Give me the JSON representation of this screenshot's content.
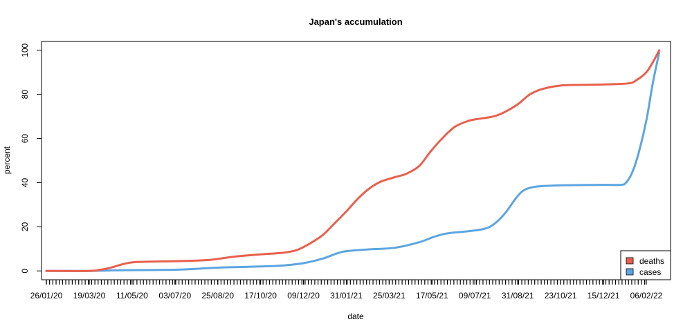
{
  "chart_data": {
    "type": "line",
    "title": "Japan's accumulation",
    "xlabel": "date",
    "ylabel": "percent",
    "x_ticks": [
      "26/01/20",
      "19/03/20",
      "11/05/20",
      "03/07/20",
      "25/08/20",
      "17/10/20",
      "09/12/20",
      "31/01/21",
      "25/03/21",
      "17/05/21",
      "09/07/21",
      "31/08/21",
      "23/10/21",
      "15/12/21",
      "06/02/22"
    ],
    "y_ticks": [
      0,
      20,
      40,
      60,
      80,
      100
    ],
    "ylim": [
      -4,
      104
    ],
    "xlim": [
      "2020-01-20",
      "2022-03-08"
    ],
    "grid": false,
    "legend": {
      "position": "bottom-right",
      "entries": [
        "deaths",
        "cases"
      ]
    },
    "series": [
      {
        "name": "deaths",
        "color": "#E8604C",
        "points": [
          [
            "2020-01-26",
            0
          ],
          [
            "2020-03-19",
            0
          ],
          [
            "2020-04-01",
            0.5
          ],
          [
            "2020-04-15",
            1.5
          ],
          [
            "2020-05-01",
            3.2
          ],
          [
            "2020-05-15",
            4.0
          ],
          [
            "2020-06-15",
            4.3
          ],
          [
            "2020-07-15",
            4.5
          ],
          [
            "2020-08-15",
            5.0
          ],
          [
            "2020-09-15",
            6.5
          ],
          [
            "2020-10-17",
            7.5
          ],
          [
            "2020-11-15",
            8.3
          ],
          [
            "2020-12-01",
            9.5
          ],
          [
            "2020-12-15",
            12.0
          ],
          [
            "2021-01-01",
            16.0
          ],
          [
            "2021-01-15",
            21.0
          ],
          [
            "2021-01-31",
            27.0
          ],
          [
            "2021-02-15",
            33.0
          ],
          [
            "2021-03-01",
            37.5
          ],
          [
            "2021-03-15",
            40.5
          ],
          [
            "2021-04-01",
            42.5
          ],
          [
            "2021-04-15",
            44.0
          ],
          [
            "2021-05-01",
            47.5
          ],
          [
            "2021-05-15",
            54.0
          ],
          [
            "2021-06-01",
            61.0
          ],
          [
            "2021-06-15",
            65.5
          ],
          [
            "2021-07-01",
            68.0
          ],
          [
            "2021-07-15",
            69.0
          ],
          [
            "2021-08-01",
            70.0
          ],
          [
            "2021-08-15",
            72.0
          ],
          [
            "2021-08-31",
            75.5
          ],
          [
            "2021-09-15",
            80.0
          ],
          [
            "2021-10-01",
            82.5
          ],
          [
            "2021-10-23",
            84.0
          ],
          [
            "2021-11-15",
            84.3
          ],
          [
            "2021-12-15",
            84.5
          ],
          [
            "2022-01-15",
            85.0
          ],
          [
            "2022-01-25",
            86.5
          ],
          [
            "2022-02-06",
            90.0
          ],
          [
            "2022-02-14",
            94.5
          ],
          [
            "2022-02-22",
            100.0
          ]
        ]
      },
      {
        "name": "cases",
        "color": "#5DA5E0",
        "points": [
          [
            "2020-01-26",
            0
          ],
          [
            "2020-03-19",
            0
          ],
          [
            "2020-05-01",
            0.3
          ],
          [
            "2020-07-01",
            0.5
          ],
          [
            "2020-08-01",
            1.0
          ],
          [
            "2020-09-01",
            1.6
          ],
          [
            "2020-10-17",
            2.0
          ],
          [
            "2020-11-15",
            2.5
          ],
          [
            "2020-12-09",
            3.5
          ],
          [
            "2021-01-01",
            5.5
          ],
          [
            "2021-01-20",
            8.0
          ],
          [
            "2021-02-01",
            9.0
          ],
          [
            "2021-03-01",
            9.8
          ],
          [
            "2021-04-01",
            10.5
          ],
          [
            "2021-05-01",
            13.0
          ],
          [
            "2021-05-20",
            15.5
          ],
          [
            "2021-06-05",
            17.0
          ],
          [
            "2021-07-01",
            18.0
          ],
          [
            "2021-07-20",
            19.0
          ],
          [
            "2021-08-01",
            21.0
          ],
          [
            "2021-08-15",
            26.0
          ],
          [
            "2021-08-31",
            34.0
          ],
          [
            "2021-09-10",
            37.0
          ],
          [
            "2021-09-25",
            38.3
          ],
          [
            "2021-10-23",
            38.8
          ],
          [
            "2021-12-15",
            39.0
          ],
          [
            "2022-01-05",
            39.0
          ],
          [
            "2022-01-12",
            40.0
          ],
          [
            "2022-01-20",
            45.0
          ],
          [
            "2022-01-28",
            54.0
          ],
          [
            "2022-02-06",
            68.0
          ],
          [
            "2022-02-14",
            85.0
          ],
          [
            "2022-02-22",
            99.0
          ]
        ]
      }
    ]
  }
}
